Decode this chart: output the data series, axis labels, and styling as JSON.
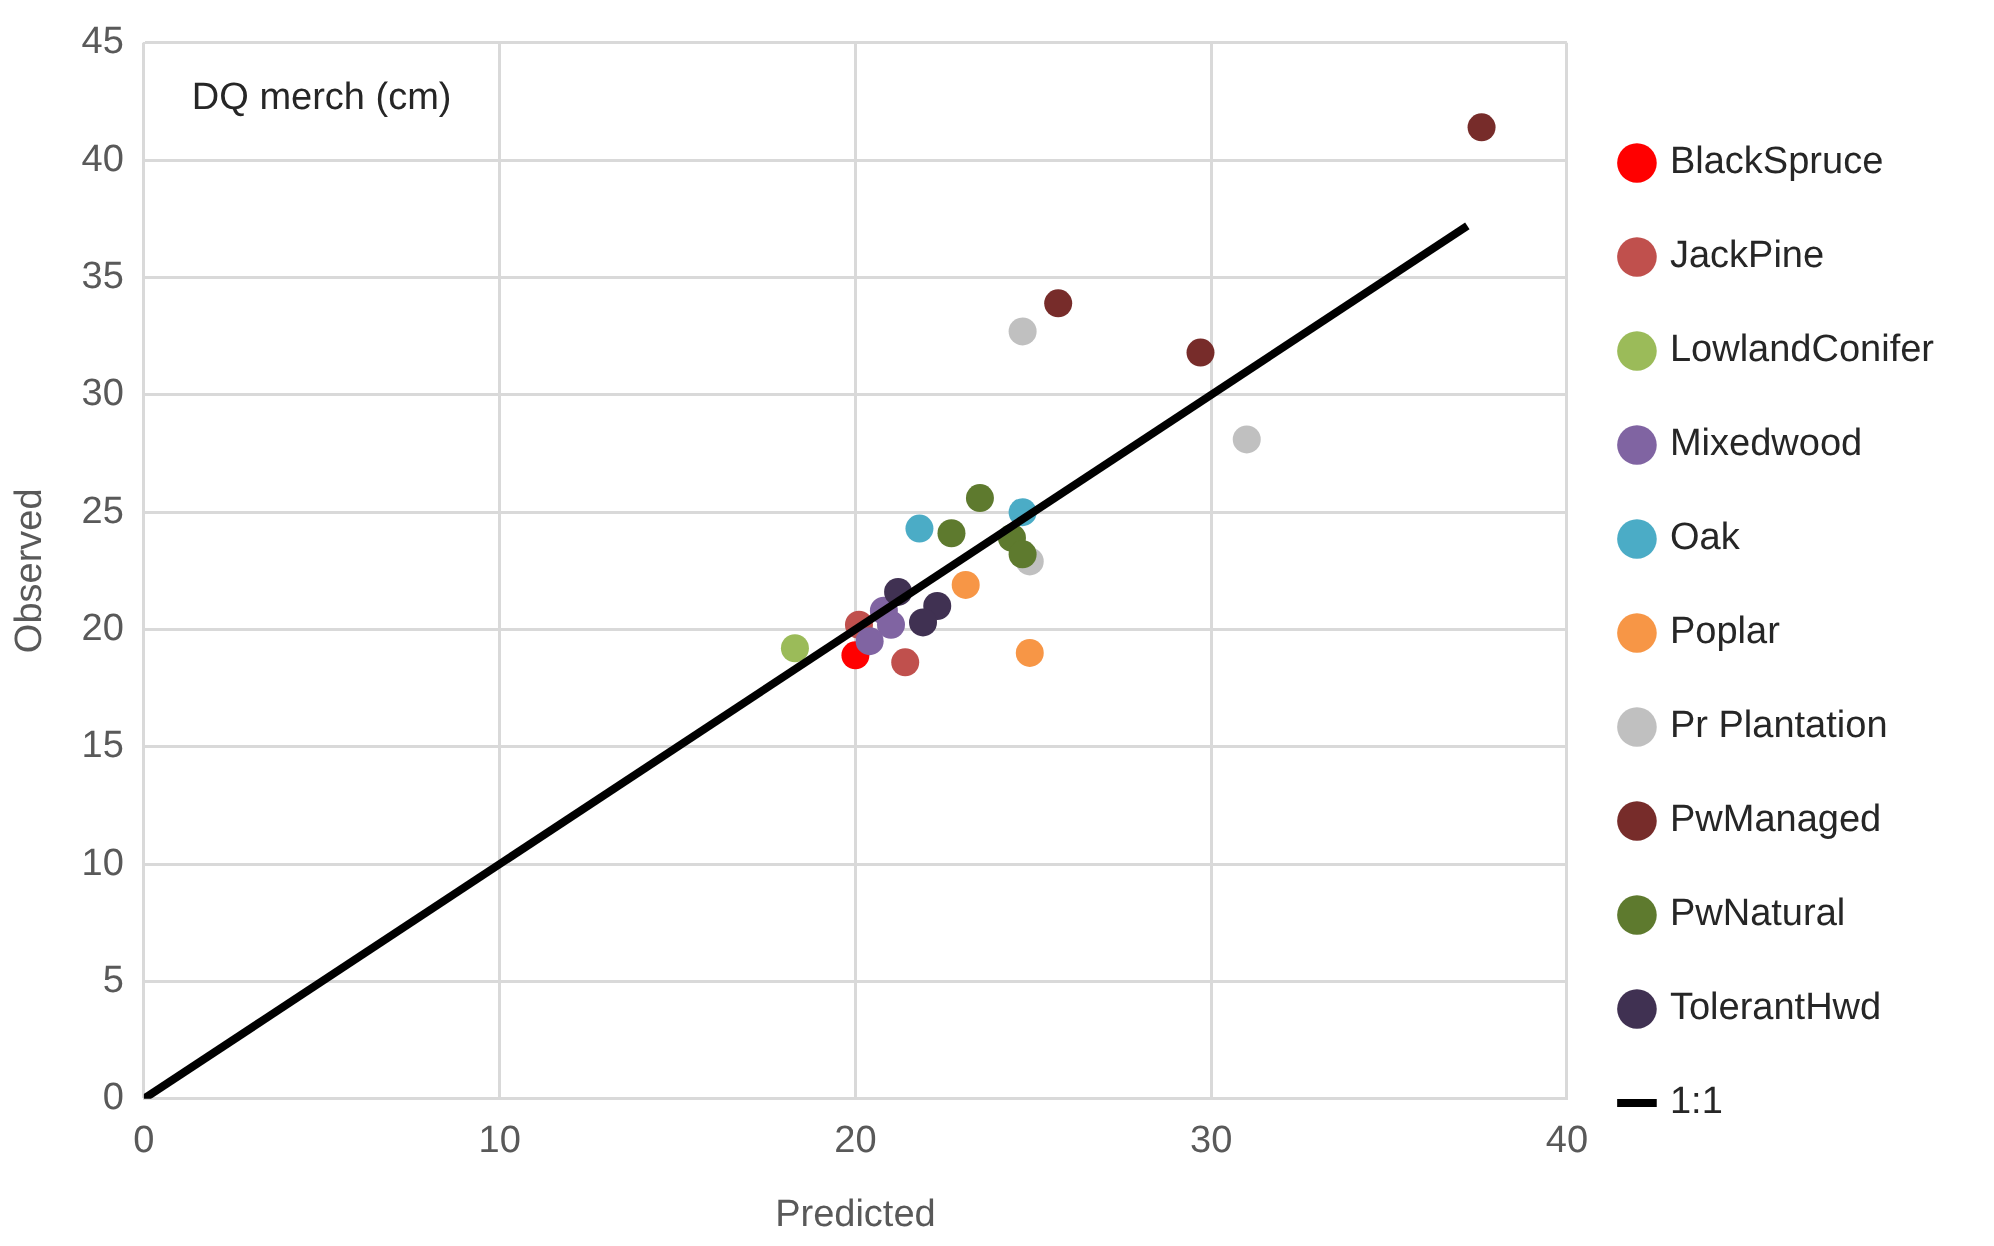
{
  "chart_data": {
    "type": "scatter",
    "xlabel": "Predicted",
    "ylabel": "Observed",
    "annotations": [
      "DQ merch (cm)"
    ],
    "xlim": [
      0,
      40
    ],
    "xticks": [
      0,
      10,
      20,
      30,
      40
    ],
    "ylim": [
      0,
      45
    ],
    "yticks": [
      0,
      5,
      10,
      15,
      20,
      25,
      30,
      35,
      40,
      45
    ],
    "grid": true,
    "legend": "right",
    "marker": "circle",
    "series": [
      {
        "name": "BlackSpruce",
        "color": "#ff0000",
        "x": [
          20.0
        ],
        "values": [
          18.9
        ]
      },
      {
        "name": "JackPine",
        "color": "#c0504d",
        "x": [
          20.1,
          21.4
        ],
        "values": [
          20.2,
          18.6
        ]
      },
      {
        "name": "LowlandConifer",
        "color": "#9bbb59",
        "x": [
          18.3
        ],
        "values": [
          19.2
        ]
      },
      {
        "name": "Mixedwood",
        "color": "#8064a2",
        "x": [
          20.8,
          21.0,
          20.4
        ],
        "values": [
          20.8,
          20.2,
          19.5
        ]
      },
      {
        "name": "Oak",
        "color": "#4bacc6",
        "x": [
          21.8,
          24.7
        ],
        "values": [
          24.3,
          25.0
        ]
      },
      {
        "name": "Poplar",
        "color": "#f79646",
        "x": [
          23.1,
          24.9
        ],
        "values": [
          21.9,
          19.0
        ]
      },
      {
        "name": "Pr Plantation",
        "color": "#c0c0c0",
        "x": [
          24.7,
          24.9,
          31.0
        ],
        "values": [
          32.7,
          22.9,
          28.1
        ]
      },
      {
        "name": "PwManaged",
        "color": "#772c2a",
        "x": [
          25.7,
          29.7,
          37.6
        ],
        "values": [
          33.9,
          31.8,
          41.4
        ]
      },
      {
        "name": "PwNatural",
        "color": "#5e7a2e",
        "x": [
          23.5,
          22.7,
          24.4,
          24.7
        ],
        "values": [
          25.6,
          24.1,
          23.9,
          23.2
        ]
      },
      {
        "name": "TolerantHwd",
        "color": "#403152",
        "x": [
          21.2,
          22.3,
          21.9
        ],
        "values": [
          21.6,
          21.0,
          20.3
        ]
      },
      {
        "name": "1:1",
        "type": "line",
        "color": "#000000",
        "marker": "none",
        "x": [
          0,
          37.2
        ],
        "values": [
          0,
          37.2
        ]
      }
    ]
  }
}
